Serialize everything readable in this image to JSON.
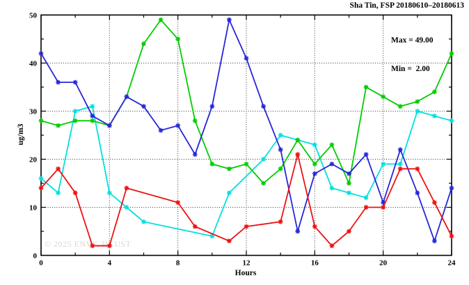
{
  "title": "Sha Tin, FSP 20180610–20180613",
  "legend": {
    "max_line": "Max = 49.00",
    "min_line": "Min =  2.00"
  },
  "watermark": "© 2025 ENVF, HKUST",
  "chart_data": {
    "type": "line",
    "title": "Sha Tin, FSP 20180610–20180613",
    "xlabel": "Hours",
    "ylabel": "ug/m3",
    "xlim": [
      0,
      24
    ],
    "ylim": [
      0,
      50
    ],
    "x_ticks": [
      0,
      4,
      8,
      12,
      16,
      20,
      24
    ],
    "x_minor_ticks": [
      2,
      6,
      10,
      14,
      18,
      22
    ],
    "y_ticks": [
      0,
      10,
      20,
      30,
      40,
      50
    ],
    "y_minor_ticks": [
      5,
      15,
      25,
      35,
      45
    ],
    "grid": true,
    "legend_position": "top-right",
    "max": 49.0,
    "min": 2.0,
    "x": [
      0,
      1,
      2,
      3,
      4,
      5,
      6,
      7,
      8,
      9,
      10,
      11,
      12,
      13,
      14,
      15,
      16,
      17,
      18,
      19,
      20,
      21,
      22,
      23,
      24
    ],
    "series": [
      {
        "name": "cyan",
        "color": "#00e0e0",
        "values": [
          16,
          13,
          30,
          31,
          13,
          10,
          7,
          null,
          null,
          null,
          4,
          13,
          null,
          20,
          25,
          24,
          23,
          14,
          13,
          12,
          19,
          19,
          30,
          29,
          28
        ]
      },
      {
        "name": "green",
        "color": "#00cc00",
        "values": [
          28,
          27,
          28,
          28,
          27,
          33,
          44,
          49,
          45,
          28,
          19,
          18,
          19,
          15,
          18,
          24,
          19,
          23,
          15,
          35,
          33,
          31,
          32,
          34,
          42
        ]
      },
      {
        "name": "blue",
        "color": "#2626d8",
        "values": [
          42,
          36,
          36,
          29,
          27,
          33,
          31,
          26,
          27,
          21,
          31,
          49,
          41,
          31,
          22,
          5,
          17,
          19,
          17,
          21,
          11,
          22,
          13,
          3,
          14
        ]
      },
      {
        "name": "red",
        "color": "#ee1111",
        "values": [
          14,
          18,
          13,
          2,
          2,
          14,
          null,
          null,
          11,
          6,
          null,
          3,
          6,
          null,
          7,
          21,
          6,
          2,
          5,
          10,
          10,
          18,
          18,
          11,
          4
        ]
      }
    ]
  }
}
